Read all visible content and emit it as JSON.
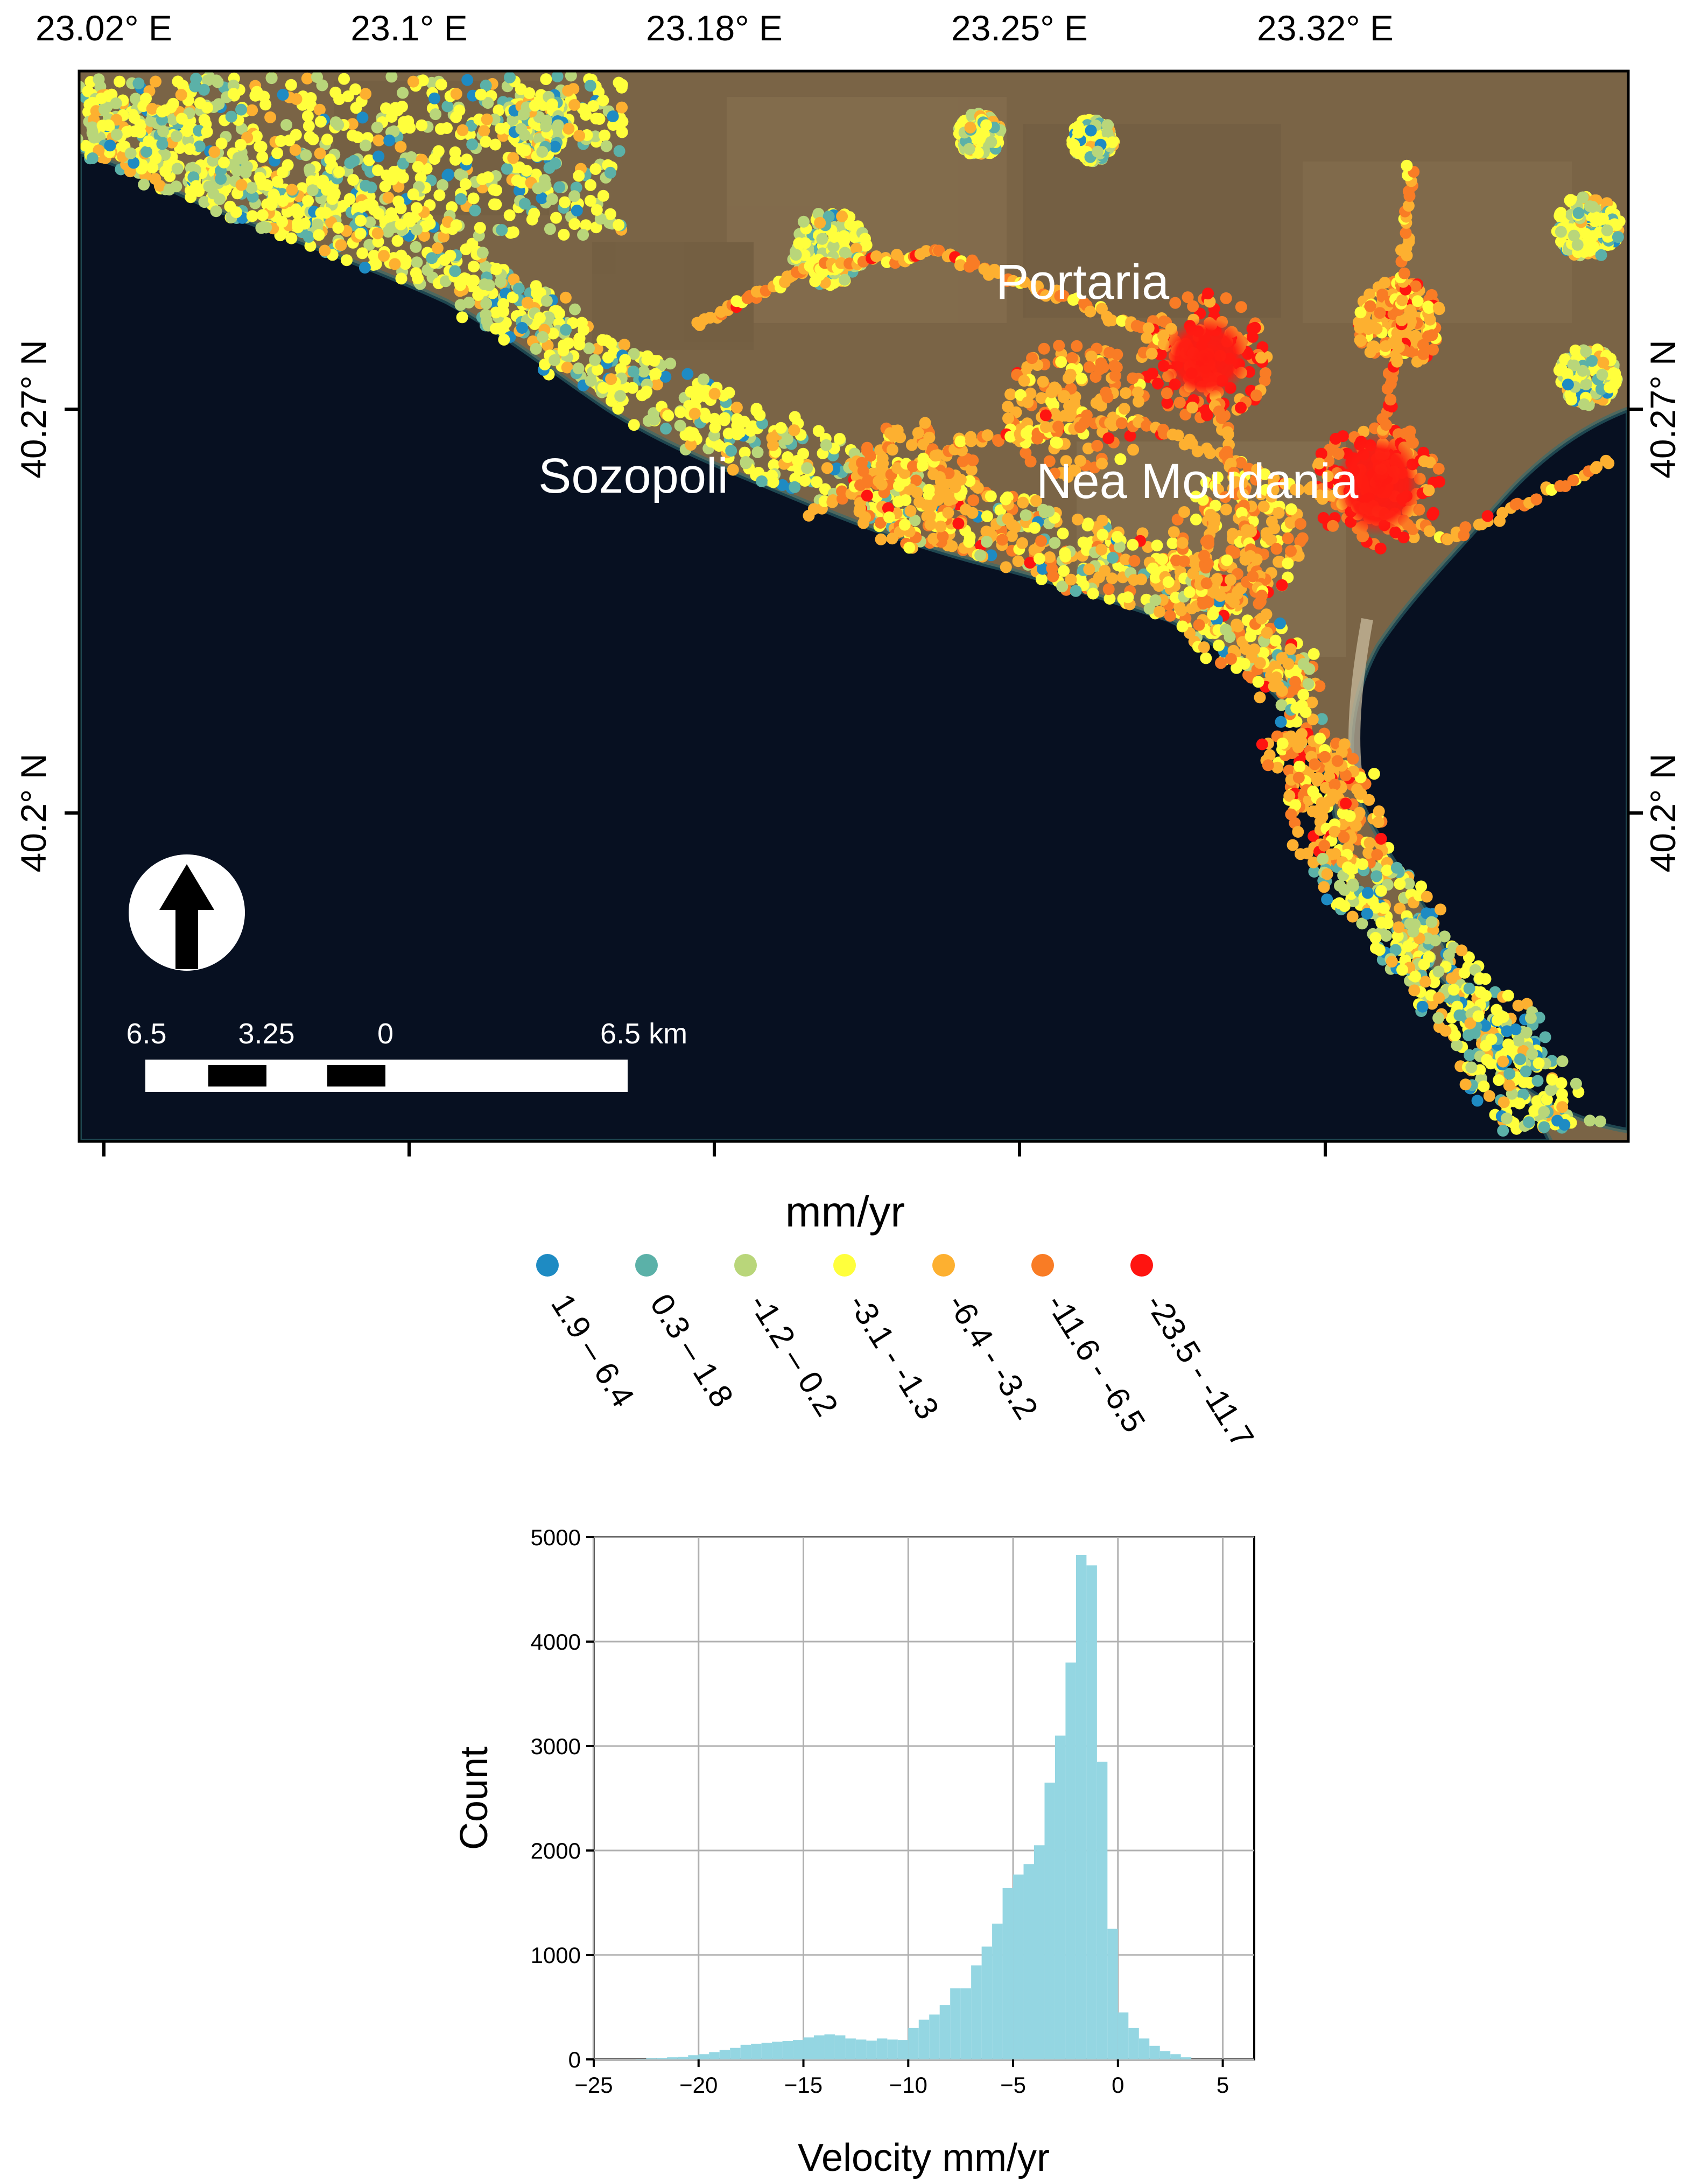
{
  "map": {
    "lon_labels": [
      "23.02° E",
      "23.1° E",
      "23.18° E",
      "23.25° E",
      "23.32° E"
    ],
    "lat_labels": [
      "40.27° N",
      "40.2° N"
    ],
    "places": [
      {
        "name": "Portaria"
      },
      {
        "name": "Sozopoli"
      },
      {
        "name": "Nea Moudania"
      }
    ],
    "north_arrow": "north-arrow-icon",
    "scale_bar": {
      "labels": [
        "6.5",
        "3.25",
        "0",
        "6.5 km"
      ]
    },
    "colors": {
      "sea": "#071021",
      "land": "#7a6446",
      "frame": "#000000"
    }
  },
  "legend": {
    "title": "mm/yr",
    "classes": [
      {
        "label": "1.9 – 6.4",
        "color": "#1e8bc3"
      },
      {
        "label": "0.3 – 1.8",
        "color": "#5bb1a8"
      },
      {
        "label": "-1.2 – 0.2",
        "color": "#b9d67a"
      },
      {
        "label": "-3.1 - -1.3",
        "color": "#ffff3c"
      },
      {
        "label": "-6.4 - -3.2",
        "color": "#fdb030"
      },
      {
        "label": "-11.6 - -6.5",
        "color": "#f97c25"
      },
      {
        "label": "-23.5 - -11.7",
        "color": "#ff1410"
      }
    ]
  },
  "chart_data": {
    "type": "bar",
    "subtype": "histogram",
    "xlabel": "Velocity mm/yr",
    "ylabel": "Count",
    "xlim": [
      -25,
      6.5
    ],
    "ylim": [
      0,
      5000
    ],
    "xticks": [
      -25,
      -20,
      -15,
      -10,
      -5,
      0,
      5
    ],
    "yticks": [
      0,
      1000,
      2000,
      3000,
      4000,
      5000
    ],
    "grid": true,
    "bar_color": "#94d6e2",
    "bin_width": 0.5,
    "bin_starts": [
      -23,
      -22.5,
      -22,
      -21.5,
      -21,
      -20.5,
      -20,
      -19.5,
      -19,
      -18.5,
      -18,
      -17.5,
      -17,
      -16.5,
      -16,
      -15.5,
      -15,
      -14.5,
      -14,
      -13.5,
      -13,
      -12.5,
      -12,
      -11.5,
      -11,
      -10.5,
      -10,
      -9.5,
      -9,
      -8.5,
      -8,
      -7.5,
      -7,
      -6.5,
      -6,
      -5.5,
      -5,
      -4.5,
      -4,
      -3.5,
      -3,
      -2.5,
      -2,
      -1.5,
      -1,
      -0.5,
      0,
      0.5,
      1,
      1.5,
      2,
      2.5,
      3
    ],
    "counts": [
      5,
      10,
      15,
      20,
      25,
      40,
      50,
      70,
      90,
      110,
      140,
      150,
      160,
      170,
      175,
      185,
      210,
      230,
      240,
      230,
      200,
      190,
      180,
      200,
      190,
      185,
      300,
      380,
      430,
      520,
      680,
      680,
      900,
      1080,
      1300,
      1640,
      1770,
      1870,
      2050,
      2650,
      3100,
      3800,
      4830,
      4730,
      2850,
      1250,
      450,
      300,
      200,
      130,
      80,
      50,
      20
    ]
  }
}
